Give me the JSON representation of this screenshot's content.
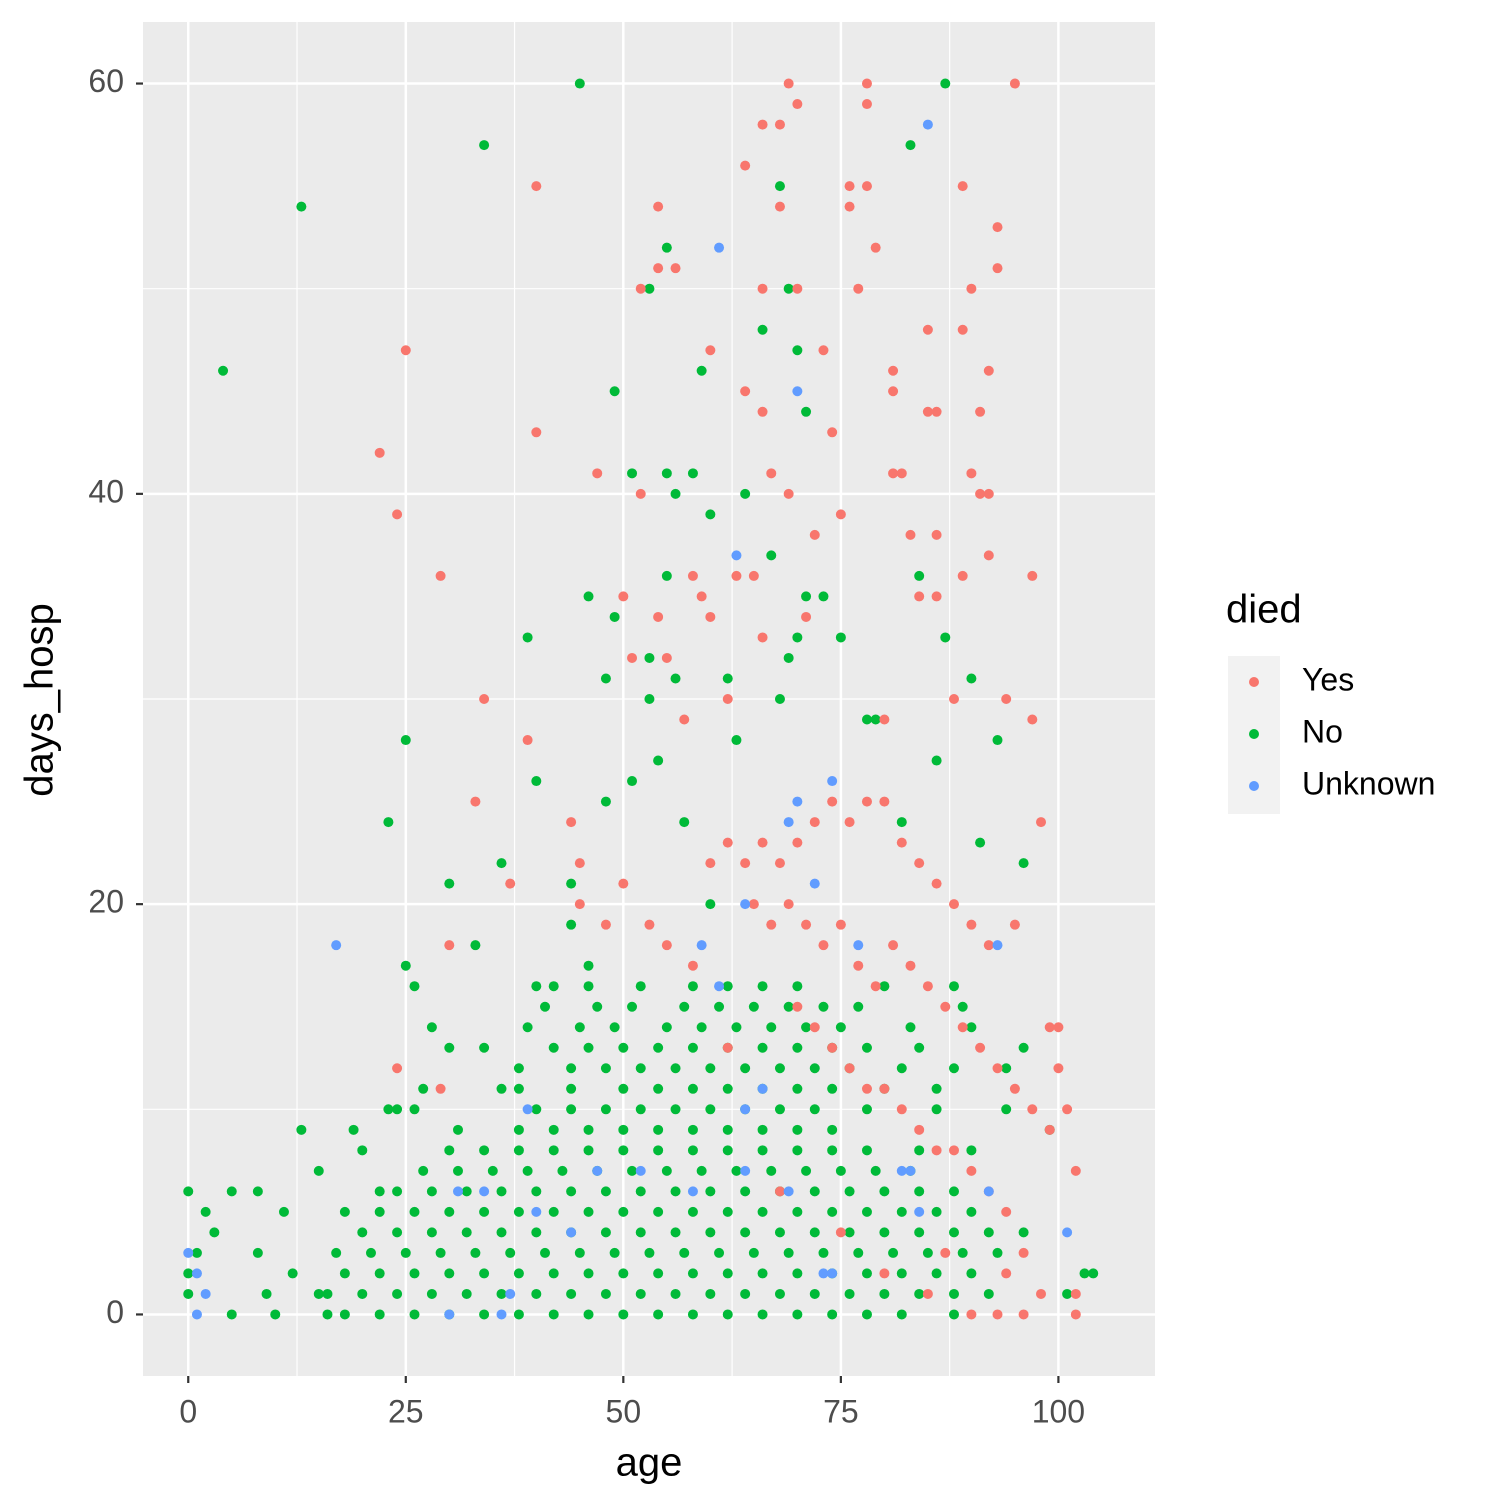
{
  "chart_data": {
    "type": "scatter",
    "x_label": "age",
    "y_label": "days_hosp",
    "legend_title": "died",
    "legend": "right",
    "grid": true,
    "xlim": [
      -5.2,
      111.1
    ],
    "ylim": [
      -3.0,
      63.0
    ],
    "xticks": [
      0,
      25,
      50,
      75,
      100
    ],
    "yticks": [
      0,
      20,
      40,
      60
    ],
    "xminor": [
      12.5,
      37.5,
      62.5,
      87.5
    ],
    "yminor": [
      10,
      30,
      50
    ],
    "series": [
      {
        "name": "Yes",
        "color": "#F8766D",
        "x": [
          22,
          24,
          24,
          25,
          29,
          30,
          29,
          33,
          34,
          37,
          39,
          40,
          40,
          44,
          45,
          45,
          47,
          48,
          50,
          50,
          51,
          52,
          52,
          54,
          54,
          54,
          55,
          56,
          57,
          58,
          59,
          60,
          60,
          62,
          63,
          64,
          64,
          65,
          66,
          66,
          66,
          66,
          67,
          68,
          68,
          69,
          69,
          70,
          70,
          71,
          72,
          73,
          74,
          75,
          76,
          76,
          77,
          78,
          78,
          78,
          79,
          80,
          81,
          81,
          81,
          82,
          83,
          84,
          85,
          85,
          86,
          86,
          86,
          88,
          89,
          89,
          89,
          90,
          90,
          91,
          91,
          92,
          92,
          92,
          93,
          93,
          94,
          95,
          95,
          97,
          97,
          98,
          99,
          100,
          100,
          101,
          102,
          102,
          102,
          98,
          96,
          93,
          90,
          60,
          62,
          64,
          66,
          68,
          70,
          72,
          74,
          76,
          78,
          80,
          82,
          84,
          86,
          88,
          90,
          92,
          65,
          67,
          69,
          71,
          73,
          75,
          77,
          79,
          81,
          83,
          85,
          87,
          89,
          91,
          93,
          95,
          97,
          99,
          70,
          72,
          74,
          76,
          78,
          80,
          82,
          84,
          86,
          88,
          90,
          92,
          94,
          96,
          94,
          87,
          85,
          80,
          75,
          68,
          62,
          58,
          55,
          53
        ],
        "values": [
          42,
          39,
          12,
          47,
          36,
          18,
          11,
          25,
          30,
          21,
          28,
          55,
          43,
          24,
          20,
          22,
          41,
          19,
          35,
          21,
          32,
          40,
          50,
          34,
          51,
          54,
          32,
          51,
          29,
          36,
          35,
          34,
          47,
          30,
          36,
          56,
          45,
          36,
          58,
          50,
          44,
          33,
          41,
          58,
          54,
          60,
          40,
          59,
          50,
          34,
          38,
          47,
          43,
          39,
          55,
          54,
          50,
          60,
          59,
          55,
          52,
          29,
          46,
          45,
          41,
          41,
          38,
          35,
          48,
          44,
          44,
          38,
          35,
          30,
          55,
          48,
          36,
          50,
          41,
          40,
          44,
          40,
          46,
          37,
          53,
          51,
          30,
          60,
          19,
          36,
          29,
          24,
          14,
          14,
          12,
          10,
          7,
          1,
          0,
          1,
          0,
          0,
          0,
          22,
          23,
          22,
          23,
          22,
          23,
          24,
          25,
          24,
          25,
          25,
          23,
          22,
          21,
          20,
          19,
          18,
          20,
          19,
          20,
          19,
          18,
          19,
          17,
          16,
          18,
          17,
          16,
          15,
          14,
          13,
          12,
          11,
          10,
          9,
          15,
          14,
          13,
          12,
          11,
          11,
          10,
          9,
          8,
          8,
          7,
          6,
          5,
          3,
          2,
          3,
          1,
          2,
          4,
          6,
          13,
          17,
          18,
          19
        ]
      },
      {
        "name": "No",
        "color": "#00BA38",
        "x": [
          0,
          0,
          0,
          1,
          2,
          3,
          4,
          5,
          5,
          8,
          8,
          9,
          10,
          11,
          12,
          13,
          13,
          15,
          15,
          16,
          18,
          19,
          20,
          22,
          23,
          23,
          25,
          25,
          26,
          27,
          28,
          30,
          30,
          31,
          33,
          34,
          34,
          36,
          36,
          38,
          39,
          40,
          40,
          44,
          44,
          45,
          46,
          46,
          48,
          48,
          49,
          49,
          51,
          51,
          53,
          53,
          53,
          54,
          55,
          55,
          55,
          56,
          56,
          57,
          58,
          59,
          60,
          60,
          62,
          63,
          64,
          66,
          67,
          68,
          68,
          69,
          69,
          70,
          70,
          71,
          71,
          73,
          75,
          78,
          79,
          82,
          83,
          84,
          86,
          87,
          87,
          90,
          91,
          93,
          96,
          99,
          101,
          103,
          104,
          18,
          22,
          26,
          30,
          34,
          38,
          42,
          46,
          50,
          54,
          58,
          62,
          66,
          70,
          74,
          78,
          82,
          88,
          16,
          20,
          24,
          28,
          32,
          36,
          40,
          44,
          48,
          52,
          56,
          60,
          64,
          68,
          72,
          76,
          80,
          84,
          88,
          92,
          18,
          22,
          26,
          30,
          34,
          38,
          42,
          46,
          50,
          54,
          58,
          62,
          66,
          70,
          74,
          78,
          82,
          86,
          90,
          17,
          21,
          25,
          29,
          33,
          37,
          41,
          45,
          49,
          53,
          57,
          61,
          65,
          69,
          73,
          77,
          81,
          85,
          89,
          93,
          20,
          24,
          28,
          32,
          36,
          40,
          44,
          48,
          52,
          56,
          60,
          64,
          68,
          72,
          76,
          80,
          84,
          88,
          92,
          96,
          22,
          26,
          30,
          34,
          38,
          42,
          46,
          50,
          54,
          58,
          62,
          66,
          70,
          74,
          78,
          82,
          86,
          90,
          24,
          28,
          32,
          36,
          40,
          44,
          48,
          52,
          56,
          60,
          64,
          68,
          72,
          76,
          80,
          84,
          88,
          27,
          31,
          35,
          39,
          43,
          47,
          51,
          55,
          59,
          63,
          67,
          71,
          75,
          79,
          83,
          30,
          34,
          38,
          42,
          46,
          50,
          54,
          58,
          62,
          66,
          70,
          74,
          78,
          84,
          90,
          38,
          42,
          46,
          50,
          54,
          58,
          62,
          66,
          70,
          74,
          24,
          26,
          40,
          44,
          48,
          52,
          56,
          60,
          64,
          68,
          72,
          78,
          86,
          94,
          38,
          44,
          50,
          54,
          58,
          62,
          66,
          70,
          74,
          80,
          86,
          44,
          48,
          52,
          56,
          60,
          64,
          68,
          72,
          76,
          82,
          88,
          94,
          42,
          46,
          50,
          54,
          58,
          62,
          66,
          70,
          74,
          78,
          84,
          96,
          39,
          45,
          49,
          55,
          59,
          63,
          67,
          71,
          75,
          83,
          90,
          41,
          47,
          51,
          57,
          61,
          65,
          69,
          73,
          77,
          89,
          42,
          46,
          52,
          58,
          62,
          66,
          70,
          80,
          88
        ],
        "values": [
          6,
          2,
          1,
          3,
          5,
          4,
          46,
          6,
          0,
          6,
          3,
          1,
          0,
          5,
          2,
          9,
          54,
          7,
          1,
          0,
          5,
          9,
          8,
          6,
          24,
          10,
          28,
          17,
          16,
          11,
          14,
          13,
          21,
          9,
          18,
          57,
          13,
          22,
          11,
          12,
          33,
          26,
          16,
          21,
          19,
          60,
          35,
          17,
          31,
          25,
          45,
          34,
          41,
          26,
          50,
          32,
          30,
          27,
          52,
          41,
          36,
          40,
          31,
          24,
          41,
          46,
          39,
          20,
          31,
          28,
          40,
          48,
          37,
          55,
          30,
          32,
          50,
          47,
          33,
          44,
          35,
          35,
          33,
          29,
          29,
          24,
          57,
          36,
          27,
          33,
          60,
          31,
          23,
          28,
          22,
          9,
          1,
          2,
          2,
          0,
          0,
          0,
          0,
          0,
          0,
          0,
          0,
          0,
          0,
          0,
          0,
          0,
          0,
          0,
          0,
          0,
          0,
          1,
          1,
          1,
          1,
          1,
          1,
          1,
          1,
          1,
          1,
          1,
          1,
          1,
          1,
          1,
          1,
          1,
          1,
          1,
          1,
          2,
          2,
          2,
          2,
          2,
          2,
          2,
          2,
          2,
          2,
          2,
          2,
          2,
          2,
          2,
          2,
          2,
          2,
          2,
          3,
          3,
          3,
          3,
          3,
          3,
          3,
          3,
          3,
          3,
          3,
          3,
          3,
          3,
          3,
          3,
          3,
          3,
          3,
          3,
          4,
          4,
          4,
          4,
          4,
          4,
          4,
          4,
          4,
          4,
          4,
          4,
          4,
          4,
          4,
          4,
          4,
          4,
          4,
          4,
          5,
          5,
          5,
          5,
          5,
          5,
          5,
          5,
          5,
          5,
          5,
          5,
          5,
          5,
          5,
          5,
          5,
          5,
          6,
          6,
          6,
          6,
          6,
          6,
          6,
          6,
          6,
          6,
          6,
          6,
          6,
          6,
          6,
          6,
          6,
          7,
          7,
          7,
          7,
          7,
          7,
          7,
          7,
          7,
          7,
          7,
          7,
          7,
          7,
          7,
          8,
          8,
          8,
          8,
          8,
          8,
          8,
          8,
          8,
          8,
          8,
          8,
          8,
          8,
          8,
          9,
          9,
          9,
          9,
          9,
          9,
          9,
          9,
          9,
          9,
          10,
          10,
          10,
          10,
          10,
          10,
          10,
          10,
          10,
          10,
          10,
          10,
          10,
          10,
          11,
          11,
          11,
          11,
          11,
          11,
          11,
          11,
          11,
          11,
          11,
          12,
          12,
          12,
          12,
          12,
          12,
          12,
          12,
          12,
          12,
          12,
          12,
          13,
          13,
          13,
          13,
          13,
          13,
          13,
          13,
          13,
          13,
          13,
          13,
          14,
          14,
          14,
          14,
          14,
          14,
          14,
          14,
          14,
          14,
          14,
          15,
          15,
          15,
          15,
          15,
          15,
          15,
          15,
          15,
          15,
          16,
          16,
          16,
          16,
          16,
          16,
          16,
          16,
          16
        ]
      },
      {
        "name": "Unknown",
        "color": "#619CFF",
        "x": [
          0,
          1,
          1,
          2,
          17,
          31,
          34,
          30,
          36,
          37,
          39,
          40,
          44,
          47,
          52,
          58,
          59,
          61,
          61,
          63,
          64,
          64,
          64,
          66,
          69,
          69,
          70,
          70,
          72,
          73,
          74,
          74,
          77,
          82,
          83,
          84,
          85,
          92,
          93,
          101
        ],
        "values": [
          3,
          2,
          0,
          1,
          18,
          6,
          6,
          0,
          0,
          1,
          10,
          5,
          4,
          7,
          7,
          6,
          18,
          16,
          52,
          37,
          20,
          7,
          10,
          11,
          24,
          6,
          25,
          45,
          21,
          2,
          26,
          2,
          18,
          7,
          7,
          5,
          58,
          6,
          18,
          4
        ]
      }
    ]
  }
}
